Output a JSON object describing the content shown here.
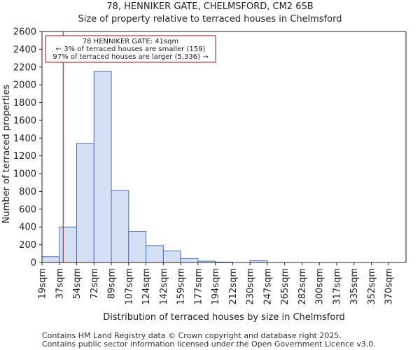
{
  "chart_data": {
    "type": "bar",
    "title": "78, HENNIKER GATE, CHELMSFORD, CM2 6SB",
    "subtitle": "Size of property relative to terraced houses in Chelmsford",
    "xlabel": "Distribution of terraced houses by size in Chelmsford",
    "ylabel": "Number of terraced properties",
    "categories": [
      "19sqm",
      "37sqm",
      "54sqm",
      "72sqm",
      "89sqm",
      "107sqm",
      "124sqm",
      "142sqm",
      "159sqm",
      "177sqm",
      "194sqm",
      "212sqm",
      "230sqm",
      "247sqm",
      "265sqm",
      "282sqm",
      "300sqm",
      "317sqm",
      "335sqm",
      "352sqm",
      "370sqm"
    ],
    "values": [
      65,
      400,
      1340,
      2150,
      810,
      350,
      190,
      130,
      45,
      15,
      5,
      0,
      20,
      0,
      0,
      0,
      0,
      0,
      0,
      0,
      0
    ],
    "ylim": [
      0,
      2600
    ],
    "yticks": [
      0,
      200,
      400,
      600,
      800,
      1000,
      1200,
      1400,
      1600,
      1800,
      2000,
      2200,
      2400,
      2600
    ],
    "grid": false,
    "bar_color": "#d6e0f5",
    "bar_edge_color": "#4a6fb5",
    "marker": {
      "x_value": 41,
      "color": "#8b1a1a",
      "label_lines": [
        "78 HENNIKER GATE: 41sqm",
        "← 3% of terraced houses are smaller (159)",
        "97% of terraced houses are larger (5,336) →"
      ]
    }
  },
  "footer": {
    "line1": "Contains HM Land Registry data © Crown copyright and database right 2025.",
    "line2": "Contains public sector information licensed under the Open Government Licence v3.0."
  }
}
